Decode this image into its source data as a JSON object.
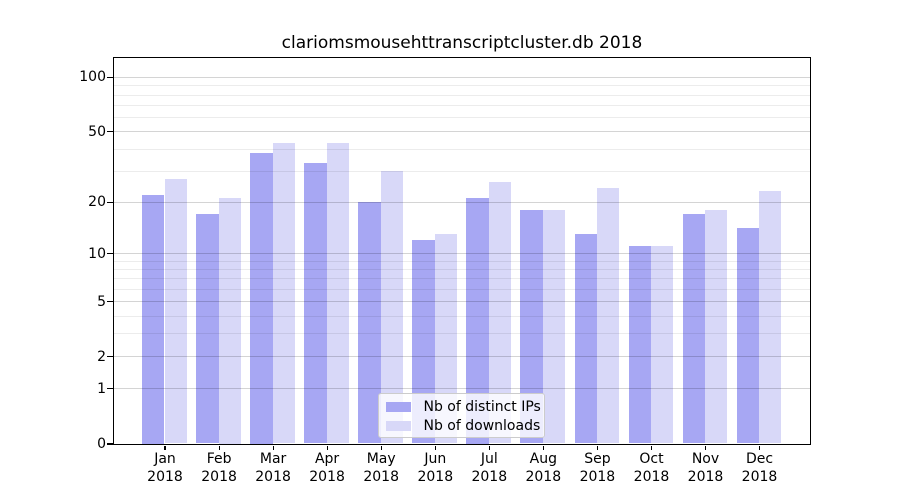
{
  "chart_data": {
    "type": "bar",
    "title": "clariomsmousehttranscriptcluster.db 2018",
    "categories": [
      "Jan",
      "Feb",
      "Mar",
      "Apr",
      "May",
      "Jun",
      "Jul",
      "Aug",
      "Sep",
      "Oct",
      "Nov",
      "Dec"
    ],
    "year": "2018",
    "series": [
      {
        "name": "Nb of distinct IPs",
        "color": "#a7a7f3",
        "values": [
          22,
          17,
          38,
          33,
          20,
          12,
          21,
          18,
          13,
          11,
          17,
          14
        ]
      },
      {
        "name": "Nb of downloads",
        "color": "#d8d8f8",
        "values": [
          27,
          21,
          43,
          43,
          30,
          13,
          26,
          18,
          24,
          11,
          18,
          23
        ]
      }
    ],
    "xlabel": "",
    "ylabel": "",
    "yscale": "log1p",
    "ylim": [
      0,
      128
    ],
    "y_ticks": [
      100,
      50,
      20,
      10,
      5,
      2,
      1,
      0
    ],
    "y_minor_gridlines": [
      3,
      4,
      6,
      7,
      8,
      9,
      30,
      40,
      60,
      70,
      80,
      90
    ],
    "grid": true,
    "legend": {
      "position": "lower center",
      "entries": [
        "Nb of distinct IPs",
        "Nb of downloads"
      ]
    }
  }
}
